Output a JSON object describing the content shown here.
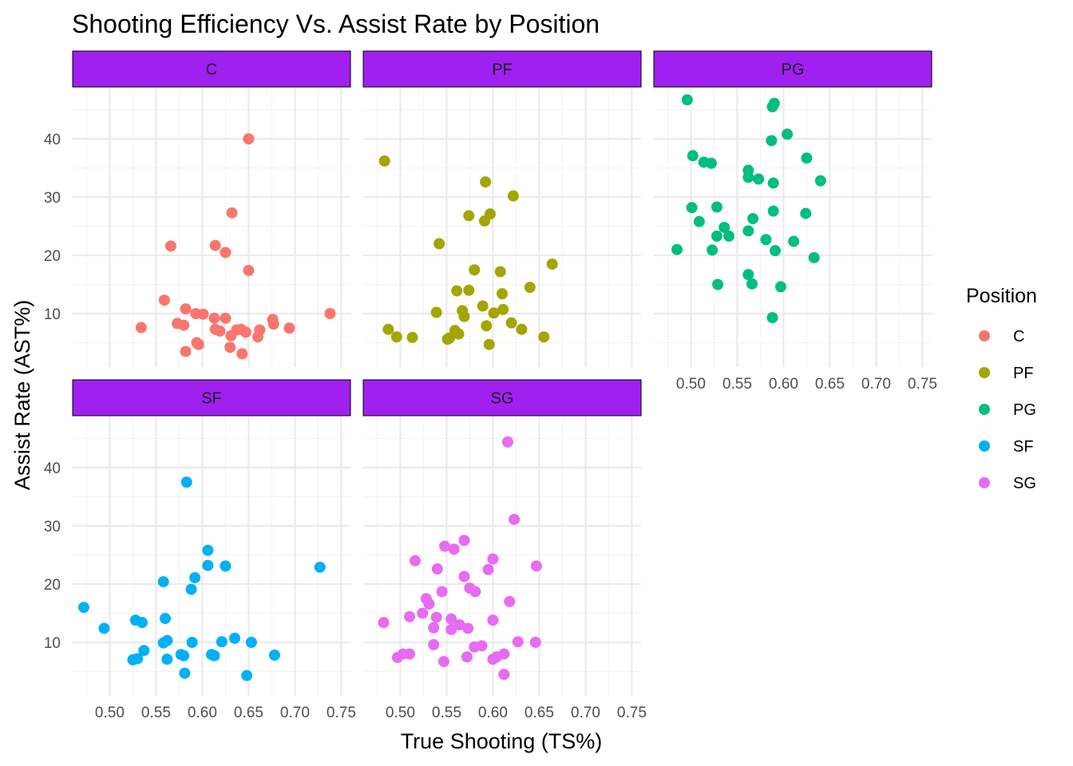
{
  "chart_data": {
    "type": "scatter",
    "title": "Shooting Efficiency Vs. Assist Rate by Position",
    "xlabel": "True Shooting (TS%)",
    "ylabel": "Assist Rate (AST%)",
    "xlim": [
      0.46,
      0.76
    ],
    "ylim": [
      2,
      48
    ],
    "x_ticks": [
      0.5,
      0.55,
      0.6,
      0.65,
      0.7,
      0.75
    ],
    "x_tick_labels": [
      "0.50",
      "0.55",
      "0.60",
      "0.65",
      "0.70",
      "0.75"
    ],
    "y_ticks": [
      10,
      20,
      30,
      40
    ],
    "y_tick_labels": [
      "10",
      "20",
      "30",
      "40"
    ],
    "grid": true,
    "legend": {
      "title": "Position",
      "placement": "right"
    },
    "facet_strip_color": "#a020f0",
    "series": [
      {
        "name": "C",
        "color": "#f8766d",
        "points": [
          [
            0.65,
            40.0
          ],
          [
            0.632,
            27.3
          ],
          [
            0.566,
            21.6
          ],
          [
            0.614,
            21.7
          ],
          [
            0.625,
            20.5
          ],
          [
            0.65,
            17.4
          ],
          [
            0.559,
            12.3
          ],
          [
            0.582,
            10.8
          ],
          [
            0.593,
            10.0
          ],
          [
            0.601,
            9.9
          ],
          [
            0.613,
            9.2
          ],
          [
            0.625,
            9.2
          ],
          [
            0.676,
            9.0
          ],
          [
            0.738,
            10.0
          ],
          [
            0.573,
            8.3
          ],
          [
            0.58,
            8.0
          ],
          [
            0.677,
            8.2
          ],
          [
            0.534,
            7.6
          ],
          [
            0.614,
            7.3
          ],
          [
            0.619,
            7.0
          ],
          [
            0.637,
            7.2
          ],
          [
            0.642,
            7.3
          ],
          [
            0.647,
            6.8
          ],
          [
            0.631,
            6.2
          ],
          [
            0.66,
            6.0
          ],
          [
            0.662,
            7.2
          ],
          [
            0.694,
            7.5
          ],
          [
            0.594,
            5.0
          ],
          [
            0.596,
            4.7
          ],
          [
            0.63,
            4.2
          ],
          [
            0.582,
            3.5
          ],
          [
            0.643,
            3.1
          ]
        ]
      },
      {
        "name": "PF",
        "color": "#a3a500",
        "points": [
          [
            0.483,
            36.2
          ],
          [
            0.592,
            32.6
          ],
          [
            0.622,
            30.2
          ],
          [
            0.574,
            26.8
          ],
          [
            0.597,
            27.1
          ],
          [
            0.591,
            25.9
          ],
          [
            0.542,
            22.0
          ],
          [
            0.664,
            18.5
          ],
          [
            0.58,
            17.5
          ],
          [
            0.608,
            17.2
          ],
          [
            0.64,
            14.5
          ],
          [
            0.561,
            13.9
          ],
          [
            0.574,
            14.0
          ],
          [
            0.61,
            13.4
          ],
          [
            0.539,
            10.2
          ],
          [
            0.567,
            10.5
          ],
          [
            0.589,
            11.3
          ],
          [
            0.569,
            9.5
          ],
          [
            0.601,
            10.1
          ],
          [
            0.611,
            10.7
          ],
          [
            0.62,
            8.4
          ],
          [
            0.593,
            7.9
          ],
          [
            0.631,
            7.3
          ],
          [
            0.487,
            7.3
          ],
          [
            0.559,
            7.1
          ],
          [
            0.496,
            6.0
          ],
          [
            0.513,
            5.9
          ],
          [
            0.553,
            5.8
          ],
          [
            0.551,
            5.6
          ],
          [
            0.563,
            6.5
          ],
          [
            0.655,
            6.0
          ],
          [
            0.596,
            4.7
          ]
        ]
      },
      {
        "name": "PG",
        "color": "#00bf7d",
        "points": [
          [
            0.496,
            46.7
          ],
          [
            0.59,
            46.1
          ],
          [
            0.588,
            45.5
          ],
          [
            0.604,
            40.8
          ],
          [
            0.587,
            39.7
          ],
          [
            0.502,
            37.1
          ],
          [
            0.625,
            36.7
          ],
          [
            0.514,
            36.0
          ],
          [
            0.522,
            35.8
          ],
          [
            0.562,
            34.6
          ],
          [
            0.562,
            33.4
          ],
          [
            0.573,
            33.1
          ],
          [
            0.589,
            32.4
          ],
          [
            0.64,
            32.8
          ],
          [
            0.501,
            28.2
          ],
          [
            0.528,
            28.3
          ],
          [
            0.589,
            27.6
          ],
          [
            0.624,
            27.2
          ],
          [
            0.567,
            26.3
          ],
          [
            0.509,
            25.8
          ],
          [
            0.536,
            24.8
          ],
          [
            0.562,
            24.2
          ],
          [
            0.528,
            23.3
          ],
          [
            0.541,
            23.3
          ],
          [
            0.581,
            22.7
          ],
          [
            0.611,
            22.4
          ],
          [
            0.485,
            21.0
          ],
          [
            0.523,
            20.9
          ],
          [
            0.591,
            20.8
          ],
          [
            0.633,
            19.6
          ],
          [
            0.562,
            16.7
          ],
          [
            0.529,
            15.0
          ],
          [
            0.566,
            15.1
          ],
          [
            0.597,
            14.6
          ],
          [
            0.588,
            9.3
          ]
        ]
      },
      {
        "name": "SF",
        "color": "#00b0f6",
        "points": [
          [
            0.583,
            37.5
          ],
          [
            0.606,
            25.8
          ],
          [
            0.606,
            23.2
          ],
          [
            0.625,
            23.1
          ],
          [
            0.727,
            22.9
          ],
          [
            0.592,
            21.1
          ],
          [
            0.558,
            20.4
          ],
          [
            0.588,
            19.1
          ],
          [
            0.472,
            16.0
          ],
          [
            0.528,
            13.8
          ],
          [
            0.535,
            13.4
          ],
          [
            0.56,
            14.1
          ],
          [
            0.494,
            12.4
          ],
          [
            0.558,
            9.9
          ],
          [
            0.562,
            10.3
          ],
          [
            0.589,
            10.0
          ],
          [
            0.621,
            10.1
          ],
          [
            0.653,
            10.0
          ],
          [
            0.635,
            10.7
          ],
          [
            0.537,
            8.6
          ],
          [
            0.577,
            7.9
          ],
          [
            0.58,
            7.7
          ],
          [
            0.61,
            7.9
          ],
          [
            0.613,
            7.7
          ],
          [
            0.678,
            7.8
          ],
          [
            0.525,
            7.0
          ],
          [
            0.53,
            7.2
          ],
          [
            0.562,
            7.1
          ],
          [
            0.581,
            4.7
          ],
          [
            0.648,
            4.3
          ]
        ]
      },
      {
        "name": "SG",
        "color": "#e76bf3",
        "points": [
          [
            0.616,
            44.4
          ],
          [
            0.623,
            31.1
          ],
          [
            0.569,
            27.5
          ],
          [
            0.548,
            26.5
          ],
          [
            0.558,
            26.0
          ],
          [
            0.6,
            24.3
          ],
          [
            0.516,
            24.0
          ],
          [
            0.54,
            22.6
          ],
          [
            0.595,
            22.5
          ],
          [
            0.647,
            23.1
          ],
          [
            0.569,
            21.3
          ],
          [
            0.575,
            19.3
          ],
          [
            0.581,
            18.7
          ],
          [
            0.545,
            18.7
          ],
          [
            0.528,
            17.5
          ],
          [
            0.531,
            16.6
          ],
          [
            0.618,
            17.0
          ],
          [
            0.524,
            15.0
          ],
          [
            0.51,
            14.4
          ],
          [
            0.539,
            14.3
          ],
          [
            0.555,
            14.0
          ],
          [
            0.482,
            13.4
          ],
          [
            0.564,
            13.0
          ],
          [
            0.6,
            13.8
          ],
          [
            0.536,
            12.5
          ],
          [
            0.555,
            12.2
          ],
          [
            0.573,
            12.4
          ],
          [
            0.536,
            9.6
          ],
          [
            0.58,
            9.2
          ],
          [
            0.588,
            9.4
          ],
          [
            0.627,
            10.1
          ],
          [
            0.646,
            10.0
          ],
          [
            0.497,
            7.4
          ],
          [
            0.503,
            8.0
          ],
          [
            0.51,
            8.0
          ],
          [
            0.572,
            7.5
          ],
          [
            0.6,
            7.1
          ],
          [
            0.604,
            7.5
          ],
          [
            0.612,
            8.0
          ],
          [
            0.547,
            6.7
          ],
          [
            0.612,
            4.5
          ]
        ]
      }
    ],
    "facets": [
      {
        "label": "C",
        "series": "C",
        "show_x_axis": false,
        "show_y_axis": true
      },
      {
        "label": "PF",
        "series": "PF",
        "show_x_axis": false,
        "show_y_axis": false
      },
      {
        "label": "PG",
        "series": "PG",
        "show_x_axis": true,
        "show_y_axis": false
      },
      {
        "label": "SF",
        "series": "SF",
        "show_x_axis": true,
        "show_y_axis": true
      },
      {
        "label": "SG",
        "series": "SG",
        "show_x_axis": true,
        "show_y_axis": false
      }
    ]
  }
}
